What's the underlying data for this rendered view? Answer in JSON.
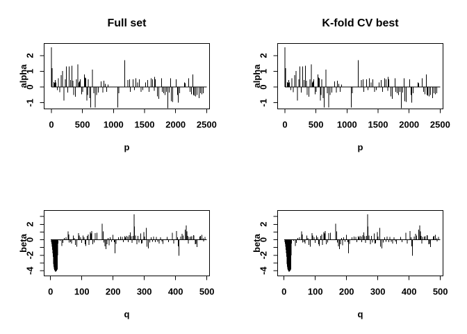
{
  "page": {
    "background": "#ffffff",
    "foreground": "#000000"
  },
  "columns": [
    {
      "id": "full-set",
      "title": "Full set"
    },
    {
      "id": "kfold-cv-best",
      "title": "K-fold CV best"
    }
  ],
  "note": "2x2 panel figure; each row shows the identical coefficient spike series in both columns",
  "chart_data": [
    {
      "type": "bar",
      "mark": "vertical-spike-from-zero",
      "shown_in_columns": [
        "Full set",
        "K-fold CV best"
      ],
      "xlabel": "p",
      "ylabel": "alpha",
      "xlim": [
        -117,
        2546
      ],
      "ylim": [
        -1.39,
        2.77
      ],
      "xticks": [
        0,
        500,
        1000,
        1500,
        2000,
        2500
      ],
      "xtick_labels": [
        "0",
        "500",
        "1000",
        "1500",
        "2000",
        "2500"
      ],
      "yticks": [
        -1,
        0,
        1,
        2
      ],
      "ytick_labels": [
        "-1",
        "0",
        "1",
        "2"
      ],
      "baseline": 0,
      "baseline_span": [
        1,
        2500
      ],
      "points": [
        [
          3,
          2.52
        ],
        [
          14,
          1.2
        ],
        [
          40,
          0.32
        ],
        [
          52,
          0.28
        ],
        [
          63,
          0.45
        ],
        [
          75,
          0.3
        ],
        [
          97,
          -0.2
        ],
        [
          115,
          0.55
        ],
        [
          134,
          -0.32
        ],
        [
          156,
          0.75
        ],
        [
          179,
          1.02
        ],
        [
          201,
          -0.85
        ],
        [
          223,
          0.5
        ],
        [
          242,
          1.3
        ],
        [
          264,
          -0.35
        ],
        [
          287,
          1.3
        ],
        [
          309,
          0.45
        ],
        [
          331,
          1.35
        ],
        [
          349,
          0.4
        ],
        [
          361,
          -0.5
        ],
        [
          387,
          -0.62
        ],
        [
          405,
          0.5
        ],
        [
          424,
          1.45
        ],
        [
          443,
          0.3
        ],
        [
          454,
          0.35
        ],
        [
          465,
          0.5
        ],
        [
          487,
          -0.45
        ],
        [
          506,
          -0.3
        ],
        [
          532,
          0.8
        ],
        [
          543,
          0.6
        ],
        [
          554,
          0.55
        ],
        [
          569,
          -0.85
        ],
        [
          580,
          -0.5
        ],
        [
          591,
          0.5
        ],
        [
          614,
          -0.7
        ],
        [
          632,
          -1.3
        ],
        [
          658,
          1.1
        ],
        [
          681,
          -0.4
        ],
        [
          703,
          -1.3
        ],
        [
          725,
          -0.5
        ],
        [
          755,
          -0.35
        ],
        [
          803,
          0.35
        ],
        [
          829,
          -0.35
        ],
        [
          845,
          0.4
        ],
        [
          867,
          0.2
        ],
        [
          890,
          -0.3
        ],
        [
          915,
          0.15
        ],
        [
          1071,
          -1.3
        ],
        [
          1085,
          -0.4
        ],
        [
          1183,
          1.7
        ],
        [
          1231,
          0.45
        ],
        [
          1258,
          0.5
        ],
        [
          1269,
          -0.3
        ],
        [
          1313,
          0.5
        ],
        [
          1339,
          -0.2
        ],
        [
          1362,
          0.55
        ],
        [
          1387,
          0.3
        ],
        [
          1417,
          0.5
        ],
        [
          1443,
          -0.3
        ],
        [
          1473,
          -0.2
        ],
        [
          1518,
          0.3
        ],
        [
          1548,
          0.45
        ],
        [
          1573,
          -0.3
        ],
        [
          1604,
          0.55
        ],
        [
          1630,
          0.5
        ],
        [
          1655,
          -0.25
        ],
        [
          1663,
          0.65
        ],
        [
          1674,
          0.5
        ],
        [
          1708,
          -0.6
        ],
        [
          1730,
          -0.75
        ],
        [
          1774,
          0.55
        ],
        [
          1786,
          -0.3
        ],
        [
          1808,
          -0.4
        ],
        [
          1830,
          -0.5
        ],
        [
          1853,
          -0.3
        ],
        [
          1875,
          -1.35
        ],
        [
          1897,
          -0.35
        ],
        [
          1920,
          0.55
        ],
        [
          1931,
          -0.9
        ],
        [
          1953,
          -0.95
        ],
        [
          2009,
          0.5
        ],
        [
          2031,
          -0.5
        ],
        [
          2042,
          -1.0
        ],
        [
          2064,
          -0.4
        ],
        [
          2143,
          0.3
        ],
        [
          2157,
          0.25
        ],
        [
          2210,
          0.55
        ],
        [
          2232,
          -0.3
        ],
        [
          2254,
          -0.45
        ],
        [
          2277,
          0.8
        ],
        [
          2291,
          -0.5
        ],
        [
          2302,
          -0.55
        ],
        [
          2325,
          -0.6
        ],
        [
          2347,
          -0.5
        ],
        [
          2377,
          -0.7
        ],
        [
          2399,
          -0.4
        ],
        [
          2425,
          -0.45
        ],
        [
          2448,
          -0.4
        ]
      ]
    },
    {
      "type": "bar",
      "mark": "vertical-spike-from-zero",
      "shown_in_columns": [
        "Full set",
        "K-fold CV best"
      ],
      "xlabel": "q",
      "ylabel": "beta",
      "xlim": [
        -20.5,
        508.5
      ],
      "ylim": [
        -4.67,
        3.78
      ],
      "xticks": [
        0,
        100,
        200,
        300,
        400,
        500
      ],
      "xtick_labels": [
        "0",
        "100",
        "200",
        "300",
        "400",
        "500"
      ],
      "yticks": [
        -4,
        -3,
        -2,
        -1,
        0,
        1,
        2,
        3
      ],
      "ytick_labels": [
        "-4",
        "",
        "-2",
        "",
        "0",
        "",
        "2",
        ""
      ],
      "baseline": 0,
      "baseline_span": [
        1,
        500
      ],
      "points": [
        [
          3,
          -0.3
        ],
        [
          4,
          -0.55
        ],
        [
          5,
          -0.9
        ],
        [
          6,
          -1.3
        ],
        [
          7,
          -1.75
        ],
        [
          8,
          -2.2
        ],
        [
          9,
          -2.7
        ],
        [
          10,
          -3.15
        ],
        [
          11,
          -3.5
        ],
        [
          12,
          -3.75
        ],
        [
          13,
          -3.9
        ],
        [
          14,
          -4.0
        ],
        [
          15,
          -4.1
        ],
        [
          16,
          -4.15
        ],
        [
          17,
          -4.1
        ],
        [
          18,
          -4.05
        ],
        [
          19,
          -4.0
        ],
        [
          20,
          -3.95
        ],
        [
          21,
          -3.9
        ],
        [
          22,
          -3.8
        ],
        [
          23,
          -2.0
        ],
        [
          24,
          -0.5
        ],
        [
          31,
          -0.15
        ],
        [
          36,
          -0.8
        ],
        [
          39,
          -0.4
        ],
        [
          44,
          0.25
        ],
        [
          50,
          0.3
        ],
        [
          56,
          1.1
        ],
        [
          58,
          0.7
        ],
        [
          60,
          -0.35
        ],
        [
          64,
          -0.3
        ],
        [
          67,
          -0.5
        ],
        [
          73,
          0.55
        ],
        [
          76,
          0.25
        ],
        [
          80,
          -0.65
        ],
        [
          84,
          -0.9
        ],
        [
          89,
          0.85
        ],
        [
          92,
          0.55
        ],
        [
          96,
          0.3
        ],
        [
          100,
          -0.4
        ],
        [
          104,
          0.55
        ],
        [
          107,
          0.3
        ],
        [
          111,
          -0.6
        ],
        [
          113,
          -0.8
        ],
        [
          117,
          0.5
        ],
        [
          121,
          0.7
        ],
        [
          123,
          -0.65
        ],
        [
          127,
          1.0
        ],
        [
          130,
          0.8
        ],
        [
          132,
          1.15
        ],
        [
          135,
          -0.6
        ],
        [
          139,
          -0.35
        ],
        [
          143,
          0.85
        ],
        [
          148,
          0.9
        ],
        [
          165,
          2.05
        ],
        [
          168,
          1.1
        ],
        [
          171,
          -0.35
        ],
        [
          174,
          -0.85
        ],
        [
          177,
          -1.2
        ],
        [
          181,
          -0.6
        ],
        [
          184,
          0.25
        ],
        [
          187,
          -0.7
        ],
        [
          191,
          0.3
        ],
        [
          195,
          -0.25
        ],
        [
          200,
          0.65
        ],
        [
          204,
          -0.3
        ],
        [
          206,
          -1.75
        ],
        [
          210,
          -0.55
        ],
        [
          217,
          0.3
        ],
        [
          224,
          0.4
        ],
        [
          229,
          0.35
        ],
        [
          233,
          -0.3
        ],
        [
          237,
          0.45
        ],
        [
          240,
          0.3
        ],
        [
          243,
          0.5
        ],
        [
          247,
          0.4
        ],
        [
          249,
          -0.3
        ],
        [
          252,
          0.6
        ],
        [
          255,
          0.95
        ],
        [
          258,
          0.45
        ],
        [
          261,
          -0.4
        ],
        [
          264,
          0.5
        ],
        [
          267,
          3.3
        ],
        [
          269,
          1.7
        ],
        [
          272,
          0.55
        ],
        [
          276,
          -0.6
        ],
        [
          280,
          0.5
        ],
        [
          283,
          -0.35
        ],
        [
          289,
          0.8
        ],
        [
          291,
          -0.5
        ],
        [
          293,
          -0.45
        ],
        [
          298,
          1.0
        ],
        [
          301,
          0.4
        ],
        [
          306,
          1.55
        ],
        [
          309,
          -0.9
        ],
        [
          313,
          -1.1
        ],
        [
          317,
          -0.35
        ],
        [
          322,
          0.3
        ],
        [
          326,
          -0.25
        ],
        [
          330,
          0.4
        ],
        [
          335,
          -0.3
        ],
        [
          338,
          0.35
        ],
        [
          343,
          -0.25
        ],
        [
          347,
          -0.5
        ],
        [
          352,
          0.3
        ],
        [
          356,
          -0.2
        ],
        [
          360,
          -0.55
        ],
        [
          373,
          0.35
        ],
        [
          377,
          -0.3
        ],
        [
          390,
          0.9
        ],
        [
          394,
          -0.5
        ],
        [
          403,
          1.15
        ],
        [
          406,
          0.3
        ],
        [
          408,
          -0.85
        ],
        [
          411,
          -2.05
        ],
        [
          416,
          0.4
        ],
        [
          421,
          0.75
        ],
        [
          424,
          0.55
        ],
        [
          431,
          1.3
        ],
        [
          434,
          1.85
        ],
        [
          436,
          1.1
        ],
        [
          439,
          0.5
        ],
        [
          441,
          -0.5
        ],
        [
          443,
          0.35
        ],
        [
          449,
          0.4
        ],
        [
          452,
          0.45
        ],
        [
          457,
          0.6
        ],
        [
          459,
          0.55
        ],
        [
          463,
          -0.6
        ],
        [
          465,
          -0.55
        ],
        [
          469,
          -0.95
        ],
        [
          477,
          0.4
        ],
        [
          480,
          0.5
        ],
        [
          484,
          0.65
        ],
        [
          488,
          0.2
        ],
        [
          490,
          -0.2
        ],
        [
          494,
          0.35
        ]
      ]
    }
  ]
}
